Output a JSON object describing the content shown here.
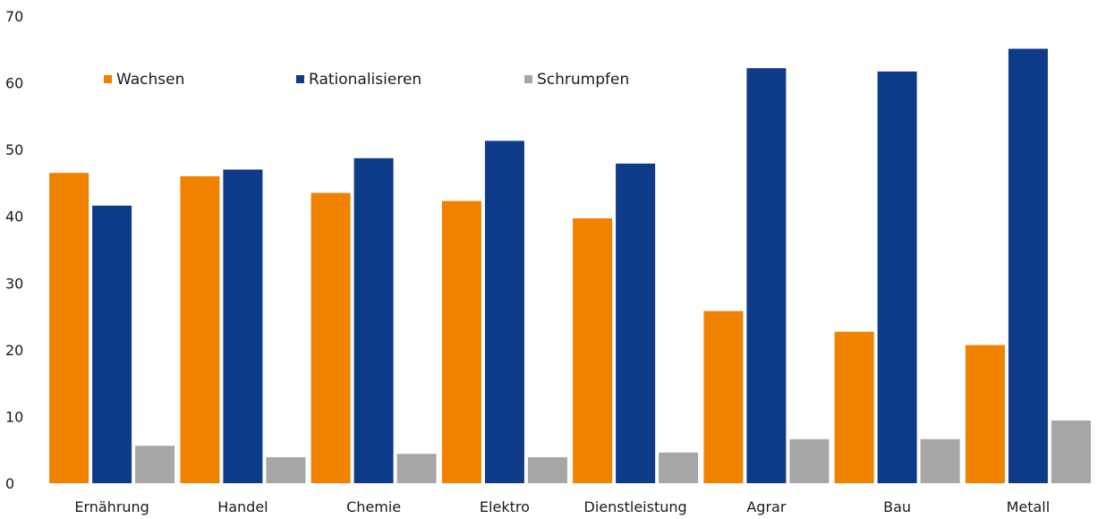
{
  "chart_data": {
    "type": "bar",
    "title": "",
    "xlabel": "",
    "ylabel": "",
    "ylim": [
      0,
      70
    ],
    "yticks": [
      0,
      10,
      20,
      30,
      40,
      50,
      60,
      70
    ],
    "grid": false,
    "legend_position": "top-left",
    "categories": [
      "Ernährung",
      "Handel",
      "Chemie",
      "Elektro",
      "Dienstleistung",
      "Agrar",
      "Bau",
      "Metall"
    ],
    "series": [
      {
        "name": "Wachsen",
        "color": "#F08200",
        "values": [
          46.5,
          46.0,
          43.5,
          42.3,
          39.7,
          25.8,
          22.7,
          20.7
        ]
      },
      {
        "name": "Rationalisieren",
        "color": "#0E3A8A",
        "values": [
          41.6,
          47.0,
          48.7,
          51.3,
          47.9,
          62.2,
          61.7,
          65.1
        ]
      },
      {
        "name": "Schrumpfen",
        "color": "#A6A6A6",
        "values": [
          5.6,
          3.9,
          4.4,
          3.9,
          4.6,
          6.6,
          6.6,
          9.4
        ]
      }
    ]
  }
}
